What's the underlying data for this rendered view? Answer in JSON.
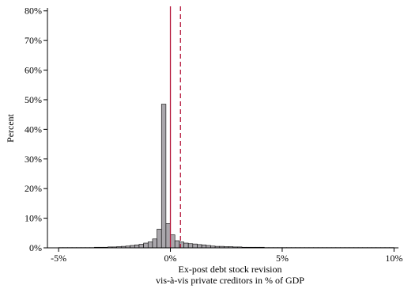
{
  "chart_data": {
    "type": "bar",
    "title": "",
    "ylabel": "Percent",
    "xlabel_lines": [
      "Ex-post debt stock revision",
      "vis-à-vis private creditors in % of GDP"
    ],
    "xlim": [
      -5.5,
      10.2
    ],
    "ylim": [
      0,
      81
    ],
    "x_ticks": [
      -5,
      0,
      5,
      10
    ],
    "x_tick_labels": [
      "-5%",
      "0%",
      "5%",
      "10%"
    ],
    "y_ticks": [
      0,
      10,
      20,
      30,
      40,
      50,
      60,
      70,
      80
    ],
    "y_tick_labels": [
      "0%",
      "10%",
      "20%",
      "30%",
      "40%",
      "50%",
      "60%",
      "70%",
      "80%"
    ],
    "grid": false,
    "bin_width": 0.2,
    "bins_x_start": [
      -5.0,
      -4.8,
      -4.6,
      -4.4,
      -4.2,
      -4.0,
      -3.8,
      -3.6,
      -3.4,
      -3.2,
      -3.0,
      -2.8,
      -2.6,
      -2.4,
      -2.2,
      -2.0,
      -1.8,
      -1.6,
      -1.4,
      -1.2,
      -1.0,
      -0.8,
      -0.6,
      -0.4,
      -0.2,
      0.0,
      0.2,
      0.4,
      0.6,
      0.8,
      1.0,
      1.2,
      1.4,
      1.6,
      1.8,
      2.0,
      2.2,
      2.4,
      2.6,
      2.8,
      3.0,
      3.2,
      3.4,
      3.6,
      3.8,
      4.0,
      4.2,
      4.4,
      4.6,
      4.8,
      5.0,
      5.2,
      5.4,
      5.6,
      5.8,
      6.0,
      6.2,
      6.4,
      6.6,
      6.8,
      7.0,
      7.2,
      7.4,
      7.6,
      7.8,
      8.0,
      8.2,
      8.4,
      8.6,
      8.8,
      9.0,
      9.2,
      9.4,
      9.6,
      9.8
    ],
    "values": [
      0.1,
      0.1,
      0.1,
      0.1,
      0.1,
      0.1,
      0.1,
      0.1,
      0.2,
      0.2,
      0.2,
      0.3,
      0.3,
      0.4,
      0.5,
      0.6,
      0.8,
      1.0,
      1.2,
      1.6,
      2.0,
      3.0,
      6.3,
      48.5,
      8.2,
      4.4,
      2.4,
      2.0,
      1.6,
      1.4,
      1.3,
      1.1,
      1.0,
      0.8,
      0.6,
      0.5,
      0.5,
      0.4,
      0.4,
      0.3,
      0.3,
      0.2,
      0.2,
      0.2,
      0.2,
      0.2,
      0.1,
      0.1,
      0.1,
      0.1,
      0.1,
      0.1,
      0.1,
      0.1,
      0.1,
      0.1,
      0.1,
      0.1,
      0.1,
      0.1,
      0.1,
      0.1,
      0.1,
      0.1,
      0.1,
      0.1,
      0.1,
      0.1,
      0.1,
      0.1,
      0.1,
      0.1,
      0.1,
      0.1,
      0.1
    ],
    "bar_color": "#a9a6ab",
    "bar_edge_color": "#000000",
    "reference_lines": [
      {
        "x": 0.0,
        "style": "solid",
        "color": "#b5163a"
      },
      {
        "x": 0.45,
        "style": "dashed",
        "color": "#b5163a"
      }
    ]
  }
}
